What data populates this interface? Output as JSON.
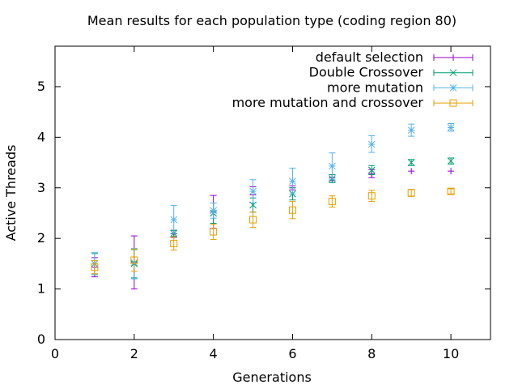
{
  "chart_data": {
    "type": "scatter",
    "title": "Mean results for each population type (coding region 80)",
    "xlabel": "Generations",
    "ylabel": "Active Threads",
    "xlim": [
      0,
      11
    ],
    "ylim": [
      0,
      5.8
    ],
    "xticks": [
      0,
      2,
      4,
      6,
      8,
      10
    ],
    "yticks": [
      0,
      1,
      2,
      3,
      4,
      5
    ],
    "grid": false,
    "legend_position": "top-right",
    "error_bars": true,
    "series": [
      {
        "name": "default selection",
        "color": "#9400d3",
        "marker": "plus",
        "points": [
          {
            "x": 1,
            "y": 1.43,
            "lo": 1.24,
            "hi": 1.62
          },
          {
            "x": 2,
            "y": 1.53,
            "lo": 1.0,
            "hi": 2.05
          },
          {
            "x": 3,
            "y": 2.09,
            "lo": 2.02,
            "hi": 2.16
          },
          {
            "x": 4,
            "y": 2.52,
            "lo": 2.2,
            "hi": 2.85
          },
          {
            "x": 5,
            "y": 2.86,
            "lo": 2.7,
            "hi": 3.02
          },
          {
            "x": 6,
            "y": 3.0,
            "lo": 2.96,
            "hi": 3.04
          },
          {
            "x": 7,
            "y": 3.2,
            "lo": 3.14,
            "hi": 3.26
          },
          {
            "x": 8,
            "y": 3.28,
            "lo": 3.2,
            "hi": 3.36
          },
          {
            "x": 9,
            "y": 3.33,
            "lo": 3.33,
            "hi": 3.33
          },
          {
            "x": 10,
            "y": 3.33,
            "lo": 3.33,
            "hi": 3.33
          }
        ]
      },
      {
        "name": "Double Crossover",
        "color": "#009e73",
        "marker": "cross",
        "points": [
          {
            "x": 1,
            "y": 1.5,
            "lo": 1.3,
            "hi": 1.7
          },
          {
            "x": 2,
            "y": 1.5,
            "lo": 1.22,
            "hi": 1.78
          },
          {
            "x": 3,
            "y": 2.1,
            "lo": 2.04,
            "hi": 2.16
          },
          {
            "x": 4,
            "y": 2.5,
            "lo": 2.3,
            "hi": 2.7
          },
          {
            "x": 5,
            "y": 2.66,
            "lo": 2.52,
            "hi": 2.8
          },
          {
            "x": 6,
            "y": 2.88,
            "lo": 2.76,
            "hi": 3.0
          },
          {
            "x": 7,
            "y": 3.18,
            "lo": 3.1,
            "hi": 3.26
          },
          {
            "x": 8,
            "y": 3.35,
            "lo": 3.26,
            "hi": 3.44
          },
          {
            "x": 9,
            "y": 3.5,
            "lo": 3.44,
            "hi": 3.56
          },
          {
            "x": 10,
            "y": 3.53,
            "lo": 3.47,
            "hi": 3.59
          }
        ]
      },
      {
        "name": "more mutation",
        "color": "#56b4e9",
        "marker": "star",
        "points": [
          {
            "x": 1,
            "y": 1.5,
            "lo": 1.28,
            "hi": 1.72
          },
          {
            "x": 2,
            "y": 1.52,
            "lo": 1.2,
            "hi": 1.8
          },
          {
            "x": 3,
            "y": 2.37,
            "lo": 2.1,
            "hi": 2.65
          },
          {
            "x": 4,
            "y": 2.55,
            "lo": 2.4,
            "hi": 2.7
          },
          {
            "x": 5,
            "y": 2.93,
            "lo": 2.7,
            "hi": 3.16
          },
          {
            "x": 6,
            "y": 3.13,
            "lo": 2.88,
            "hi": 3.39
          },
          {
            "x": 7,
            "y": 3.43,
            "lo": 3.17,
            "hi": 3.69
          },
          {
            "x": 8,
            "y": 3.86,
            "lo": 3.7,
            "hi": 4.03
          },
          {
            "x": 9,
            "y": 4.14,
            "lo": 4.02,
            "hi": 4.26
          },
          {
            "x": 10,
            "y": 4.19,
            "lo": 4.12,
            "hi": 4.27
          }
        ]
      },
      {
        "name": "more mutation and crossover",
        "color": "#e69f00",
        "marker": "square",
        "points": [
          {
            "x": 1,
            "y": 1.43,
            "lo": 1.3,
            "hi": 1.56
          },
          {
            "x": 2,
            "y": 1.57,
            "lo": 1.35,
            "hi": 1.79
          },
          {
            "x": 3,
            "y": 1.9,
            "lo": 1.77,
            "hi": 2.03
          },
          {
            "x": 4,
            "y": 2.13,
            "lo": 1.98,
            "hi": 2.28
          },
          {
            "x": 5,
            "y": 2.37,
            "lo": 2.22,
            "hi": 2.52
          },
          {
            "x": 6,
            "y": 2.56,
            "lo": 2.39,
            "hi": 2.73
          },
          {
            "x": 7,
            "y": 2.73,
            "lo": 2.62,
            "hi": 2.84
          },
          {
            "x": 8,
            "y": 2.84,
            "lo": 2.73,
            "hi": 2.95
          },
          {
            "x": 9,
            "y": 2.9,
            "lo": 2.83,
            "hi": 2.97
          },
          {
            "x": 10,
            "y": 2.93,
            "lo": 2.88,
            "hi": 2.98
          }
        ]
      }
    ]
  }
}
